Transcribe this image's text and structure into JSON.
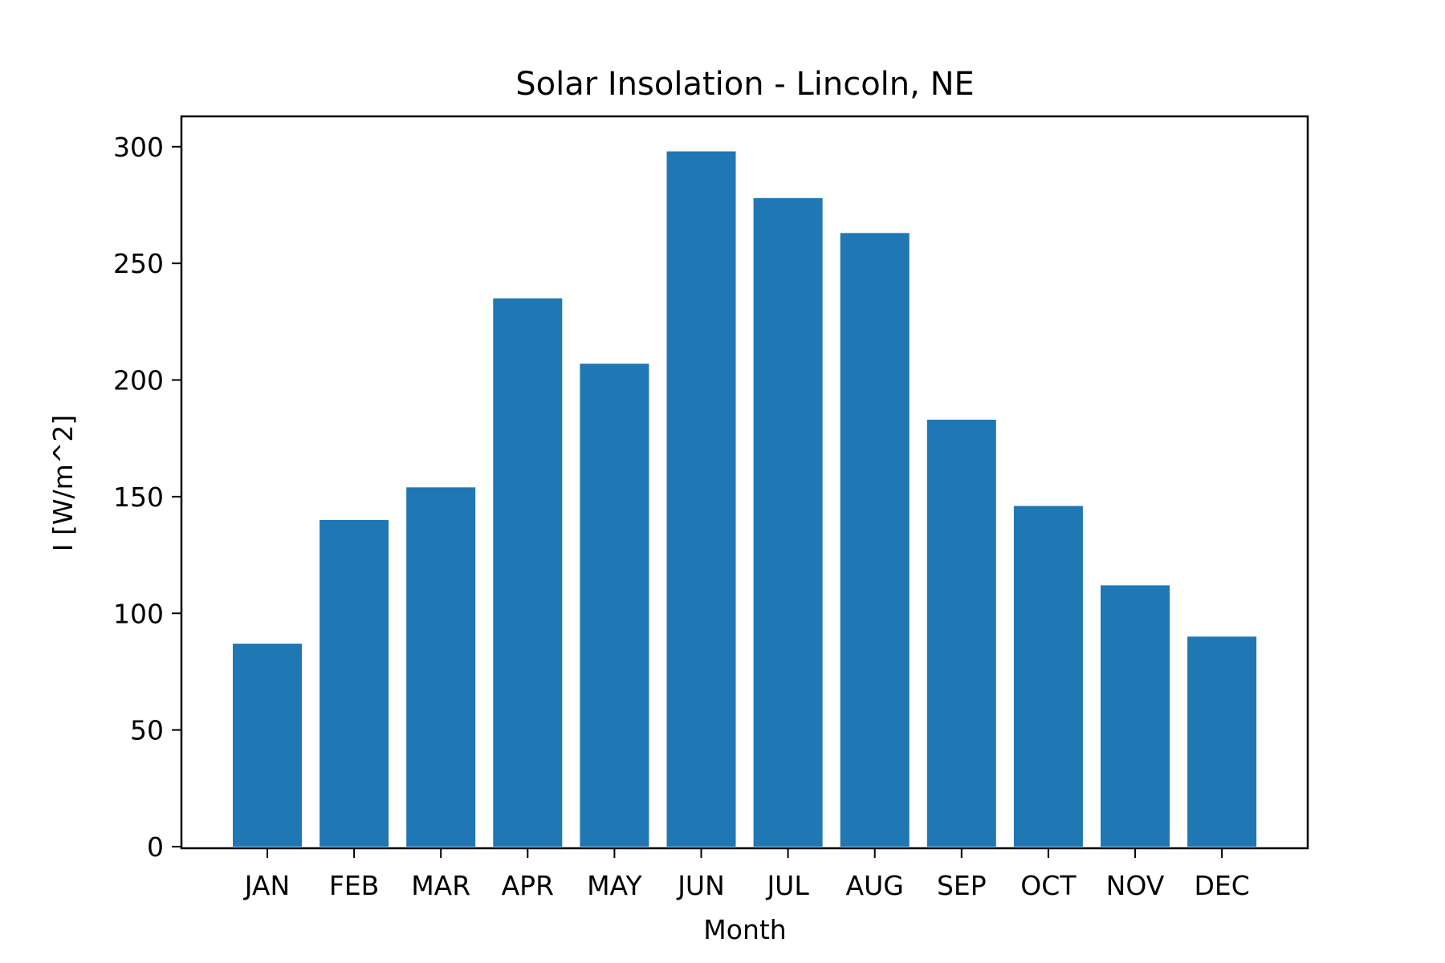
{
  "chart_data": {
    "type": "bar",
    "title": "Solar Insolation - Lincoln, NE",
    "xlabel": "Month",
    "ylabel": "I [W/m^2]",
    "categories": [
      "JAN",
      "FEB",
      "MAR",
      "APR",
      "MAY",
      "JUN",
      "JUL",
      "AUG",
      "SEP",
      "OCT",
      "NOV",
      "DEC"
    ],
    "values": [
      87,
      140,
      154,
      235,
      207,
      298,
      278,
      263,
      183,
      146,
      112,
      90
    ],
    "ylim": [
      0,
      313
    ],
    "yticks": [
      0,
      50,
      100,
      150,
      200,
      250,
      300
    ],
    "bar_color": "#1f77b4",
    "grid": false,
    "legend": "none"
  }
}
